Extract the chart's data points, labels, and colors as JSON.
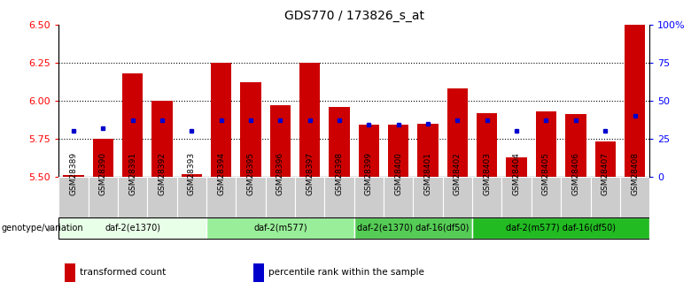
{
  "title": "GDS770 / 173826_s_at",
  "samples": [
    "GSM28389",
    "GSM28390",
    "GSM28391",
    "GSM28392",
    "GSM28393",
    "GSM28394",
    "GSM28395",
    "GSM28396",
    "GSM28397",
    "GSM28398",
    "GSM28399",
    "GSM28400",
    "GSM28401",
    "GSM28402",
    "GSM28403",
    "GSM28404",
    "GSM28405",
    "GSM28406",
    "GSM28407",
    "GSM28408"
  ],
  "bar_values": [
    5.51,
    5.75,
    6.18,
    6.0,
    5.52,
    6.25,
    6.12,
    5.97,
    6.25,
    5.96,
    5.84,
    5.84,
    5.85,
    6.08,
    5.92,
    5.63,
    5.93,
    5.91,
    5.73,
    6.52
  ],
  "percentile_values": [
    5.8,
    5.82,
    5.87,
    5.87,
    5.8,
    5.87,
    5.87,
    5.87,
    5.87,
    5.87,
    5.84,
    5.84,
    5.85,
    5.87,
    5.87,
    5.8,
    5.87,
    5.87,
    5.8,
    5.9
  ],
  "ylim": [
    5.5,
    6.5
  ],
  "yticks": [
    5.5,
    5.75,
    6.0,
    6.25,
    6.5
  ],
  "right_yticks": [
    0,
    25,
    50,
    75,
    100
  ],
  "bar_color": "#cc0000",
  "percentile_color": "#0000cc",
  "bar_width": 0.7,
  "groups": [
    {
      "label": "daf-2(e1370)",
      "start": 0,
      "end": 5,
      "color": "#e8ffe8"
    },
    {
      "label": "daf-2(m577)",
      "start": 5,
      "end": 10,
      "color": "#99ee99"
    },
    {
      "label": "daf-2(e1370) daf-16(df50)",
      "start": 10,
      "end": 14,
      "color": "#55cc55"
    },
    {
      "label": "daf-2(m577) daf-16(df50)",
      "start": 14,
      "end": 20,
      "color": "#22bb22"
    }
  ],
  "genotype_label": "genotype/variation",
  "legend_items": [
    {
      "label": "transformed count",
      "color": "#cc0000"
    },
    {
      "label": "percentile rank within the sample",
      "color": "#0000cc"
    }
  ],
  "title_fontsize": 10,
  "background_color": "#ffffff",
  "tick_bg_color": "#cccccc",
  "grid_dotted_color": "#555555"
}
